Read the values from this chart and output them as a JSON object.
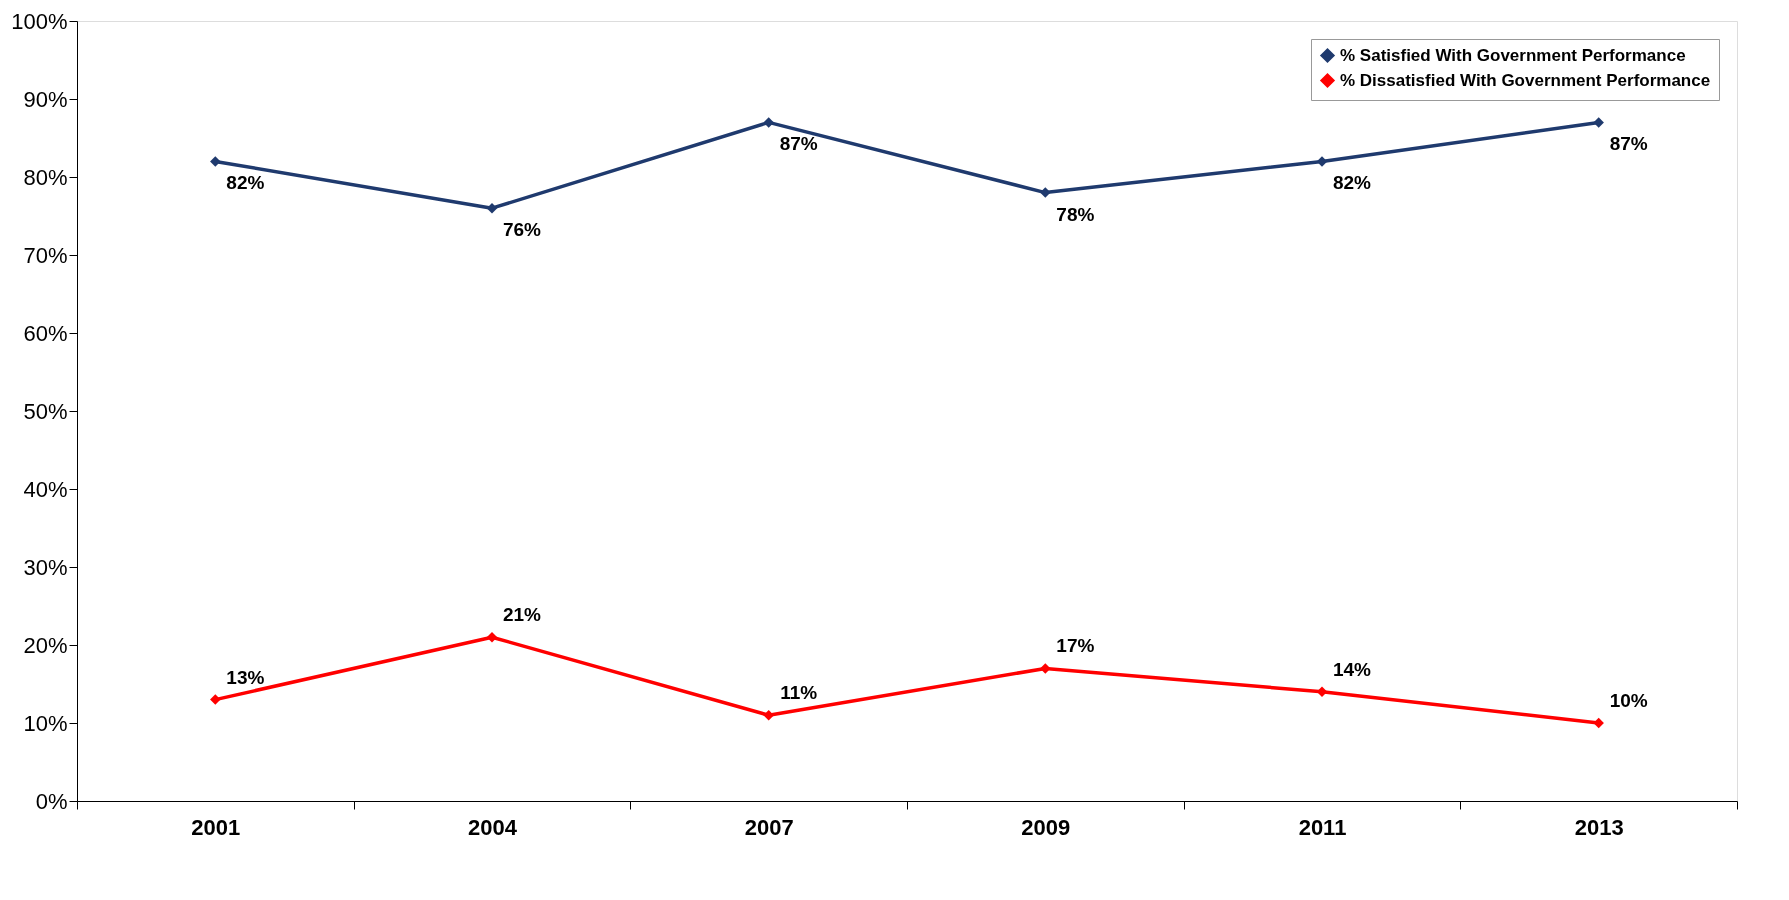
{
  "chart_data": {
    "type": "line",
    "categories": [
      "2001",
      "2004",
      "2007",
      "2009",
      "2011",
      "2013"
    ],
    "series": [
      {
        "name": "% Satisfied With Government Performance",
        "color": "#1f3a6e",
        "values": [
          82,
          76,
          87,
          78,
          82,
          87
        ],
        "value_labels": [
          "82%",
          "76%",
          "87%",
          "78%",
          "82%",
          "87%"
        ]
      },
      {
        "name": "% Dissatisfied With Government Performance",
        "color": "#ff0000",
        "values": [
          13,
          21,
          11,
          17,
          14,
          10
        ],
        "value_labels": [
          "13%",
          "21%",
          "11%",
          "17%",
          "14%",
          "10%"
        ]
      }
    ],
    "ylim": [
      0,
      100
    ],
    "yticks": [
      {
        "value": 0,
        "label": "0%"
      },
      {
        "value": 10,
        "label": "10%"
      },
      {
        "value": 20,
        "label": "20%"
      },
      {
        "value": 30,
        "label": "30%"
      },
      {
        "value": 40,
        "label": "40%"
      },
      {
        "value": 50,
        "label": "50%"
      },
      {
        "value": 60,
        "label": "60%"
      },
      {
        "value": 70,
        "label": "70%"
      },
      {
        "value": 80,
        "label": "80%"
      },
      {
        "value": 90,
        "label": "90%"
      },
      {
        "value": 100,
        "label": "100%"
      }
    ],
    "grid": false,
    "legend": "top right",
    "marker": "diamond",
    "line_style": "solid"
  }
}
